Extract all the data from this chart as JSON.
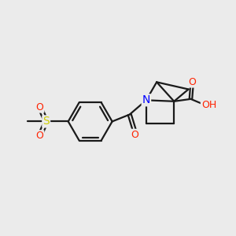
{
  "bg_color": "#ebebeb",
  "bond_color": "#1a1a1a",
  "bond_width": 1.6,
  "atom_colors": {
    "N": "#0000ff",
    "O": "#ff2200",
    "S": "#cccc00",
    "H": "#708090",
    "C": "#1a1a1a"
  },
  "figsize": [
    3.0,
    3.0
  ],
  "dpi": 100,
  "xlim": [
    0,
    10
  ],
  "ylim": [
    0,
    10
  ]
}
